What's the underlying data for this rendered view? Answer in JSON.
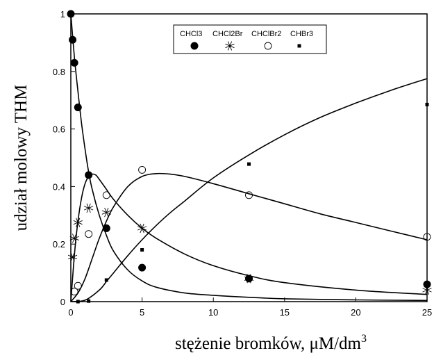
{
  "chart_data": {
    "type": "scatter",
    "xlabel": "stężenie bromków, μM/dm",
    "xlabel_sup": "3",
    "ylabel": "udział molowy THM",
    "xlim": [
      0,
      25
    ],
    "ylim": [
      0,
      1
    ],
    "xticks": [
      0,
      5,
      10,
      15,
      20,
      25
    ],
    "yticks": [
      0,
      0.2,
      0.4,
      0.6,
      0.8,
      1
    ],
    "grid": false,
    "legend_position": "top-center",
    "series": [
      {
        "name": "CHCl3",
        "marker": "filled-circle",
        "points": [
          [
            0,
            1.0
          ],
          [
            0.125,
            0.91
          ],
          [
            0.25,
            0.83
          ],
          [
            0.5,
            0.675
          ],
          [
            1.25,
            0.44
          ],
          [
            2.5,
            0.255
          ],
          [
            5,
            0.118
          ],
          [
            12.5,
            0.08
          ],
          [
            25,
            0.06
          ]
        ],
        "curve": [
          [
            0,
            1.0
          ],
          [
            0.25,
            0.85
          ],
          [
            0.5,
            0.73
          ],
          [
            0.75,
            0.62
          ],
          [
            1,
            0.53
          ],
          [
            1.25,
            0.45
          ],
          [
            1.5,
            0.39
          ],
          [
            2,
            0.3
          ],
          [
            2.5,
            0.23
          ],
          [
            3,
            0.175
          ],
          [
            4,
            0.11
          ],
          [
            5,
            0.072
          ],
          [
            6,
            0.05
          ],
          [
            8,
            0.03
          ],
          [
            10,
            0.022
          ],
          [
            12.5,
            0.015
          ],
          [
            15,
            0.01
          ],
          [
            20,
            0.006
          ],
          [
            25,
            0.004
          ]
        ]
      },
      {
        "name": "CHCl2Br",
        "marker": "asterisk",
        "points": [
          [
            0.125,
            0.155
          ],
          [
            0.25,
            0.22
          ],
          [
            0.5,
            0.275
          ],
          [
            1.25,
            0.325
          ],
          [
            2.5,
            0.31
          ],
          [
            5,
            0.255
          ],
          [
            12.5,
            0.08
          ],
          [
            25,
            0.04
          ]
        ],
        "curve": [
          [
            0,
            0.0
          ],
          [
            0.15,
            0.1
          ],
          [
            0.3,
            0.19
          ],
          [
            0.5,
            0.28
          ],
          [
            0.75,
            0.36
          ],
          [
            1,
            0.41
          ],
          [
            1.25,
            0.435
          ],
          [
            1.5,
            0.443
          ],
          [
            1.75,
            0.44
          ],
          [
            2,
            0.425
          ],
          [
            2.5,
            0.39
          ],
          [
            3,
            0.355
          ],
          [
            4,
            0.3
          ],
          [
            5,
            0.255
          ],
          [
            6,
            0.22
          ],
          [
            8,
            0.165
          ],
          [
            10,
            0.125
          ],
          [
            12.5,
            0.09
          ],
          [
            15,
            0.066
          ],
          [
            20,
            0.04
          ],
          [
            25,
            0.025
          ]
        ]
      },
      {
        "name": "CHClBr2",
        "marker": "open-circle",
        "points": [
          [
            0.25,
            0.035
          ],
          [
            0.5,
            0.055
          ],
          [
            1.25,
            0.235
          ],
          [
            2.5,
            0.37
          ],
          [
            5,
            0.458
          ],
          [
            12.5,
            0.37
          ],
          [
            25,
            0.225
          ]
        ],
        "curve": [
          [
            0,
            0.0
          ],
          [
            0.5,
            0.03
          ],
          [
            1,
            0.08
          ],
          [
            1.5,
            0.15
          ],
          [
            2,
            0.22
          ],
          [
            2.5,
            0.28
          ],
          [
            3,
            0.33
          ],
          [
            4,
            0.4
          ],
          [
            5,
            0.435
          ],
          [
            6,
            0.445
          ],
          [
            7,
            0.443
          ],
          [
            8,
            0.435
          ],
          [
            10,
            0.41
          ],
          [
            12.5,
            0.375
          ],
          [
            15,
            0.34
          ],
          [
            17.5,
            0.305
          ],
          [
            20,
            0.275
          ],
          [
            22.5,
            0.245
          ],
          [
            25,
            0.215
          ]
        ]
      },
      {
        "name": "CHBr3",
        "marker": "filled-square",
        "points": [
          [
            0.5,
            0.0
          ],
          [
            1.25,
            0.002
          ],
          [
            2.5,
            0.075
          ],
          [
            5,
            0.18
          ],
          [
            12.5,
            0.478
          ],
          [
            25,
            0.685
          ]
        ],
        "curve": [
          [
            0,
            0.0
          ],
          [
            1,
            0.005
          ],
          [
            2,
            0.04
          ],
          [
            2.5,
            0.07
          ],
          [
            3,
            0.1
          ],
          [
            4,
            0.16
          ],
          [
            5,
            0.215
          ],
          [
            6,
            0.265
          ],
          [
            7,
            0.31
          ],
          [
            8,
            0.35
          ],
          [
            10,
            0.43
          ],
          [
            12.5,
            0.51
          ],
          [
            15,
            0.58
          ],
          [
            17.5,
            0.64
          ],
          [
            20,
            0.69
          ],
          [
            22.5,
            0.735
          ],
          [
            25,
            0.775
          ]
        ]
      }
    ]
  }
}
